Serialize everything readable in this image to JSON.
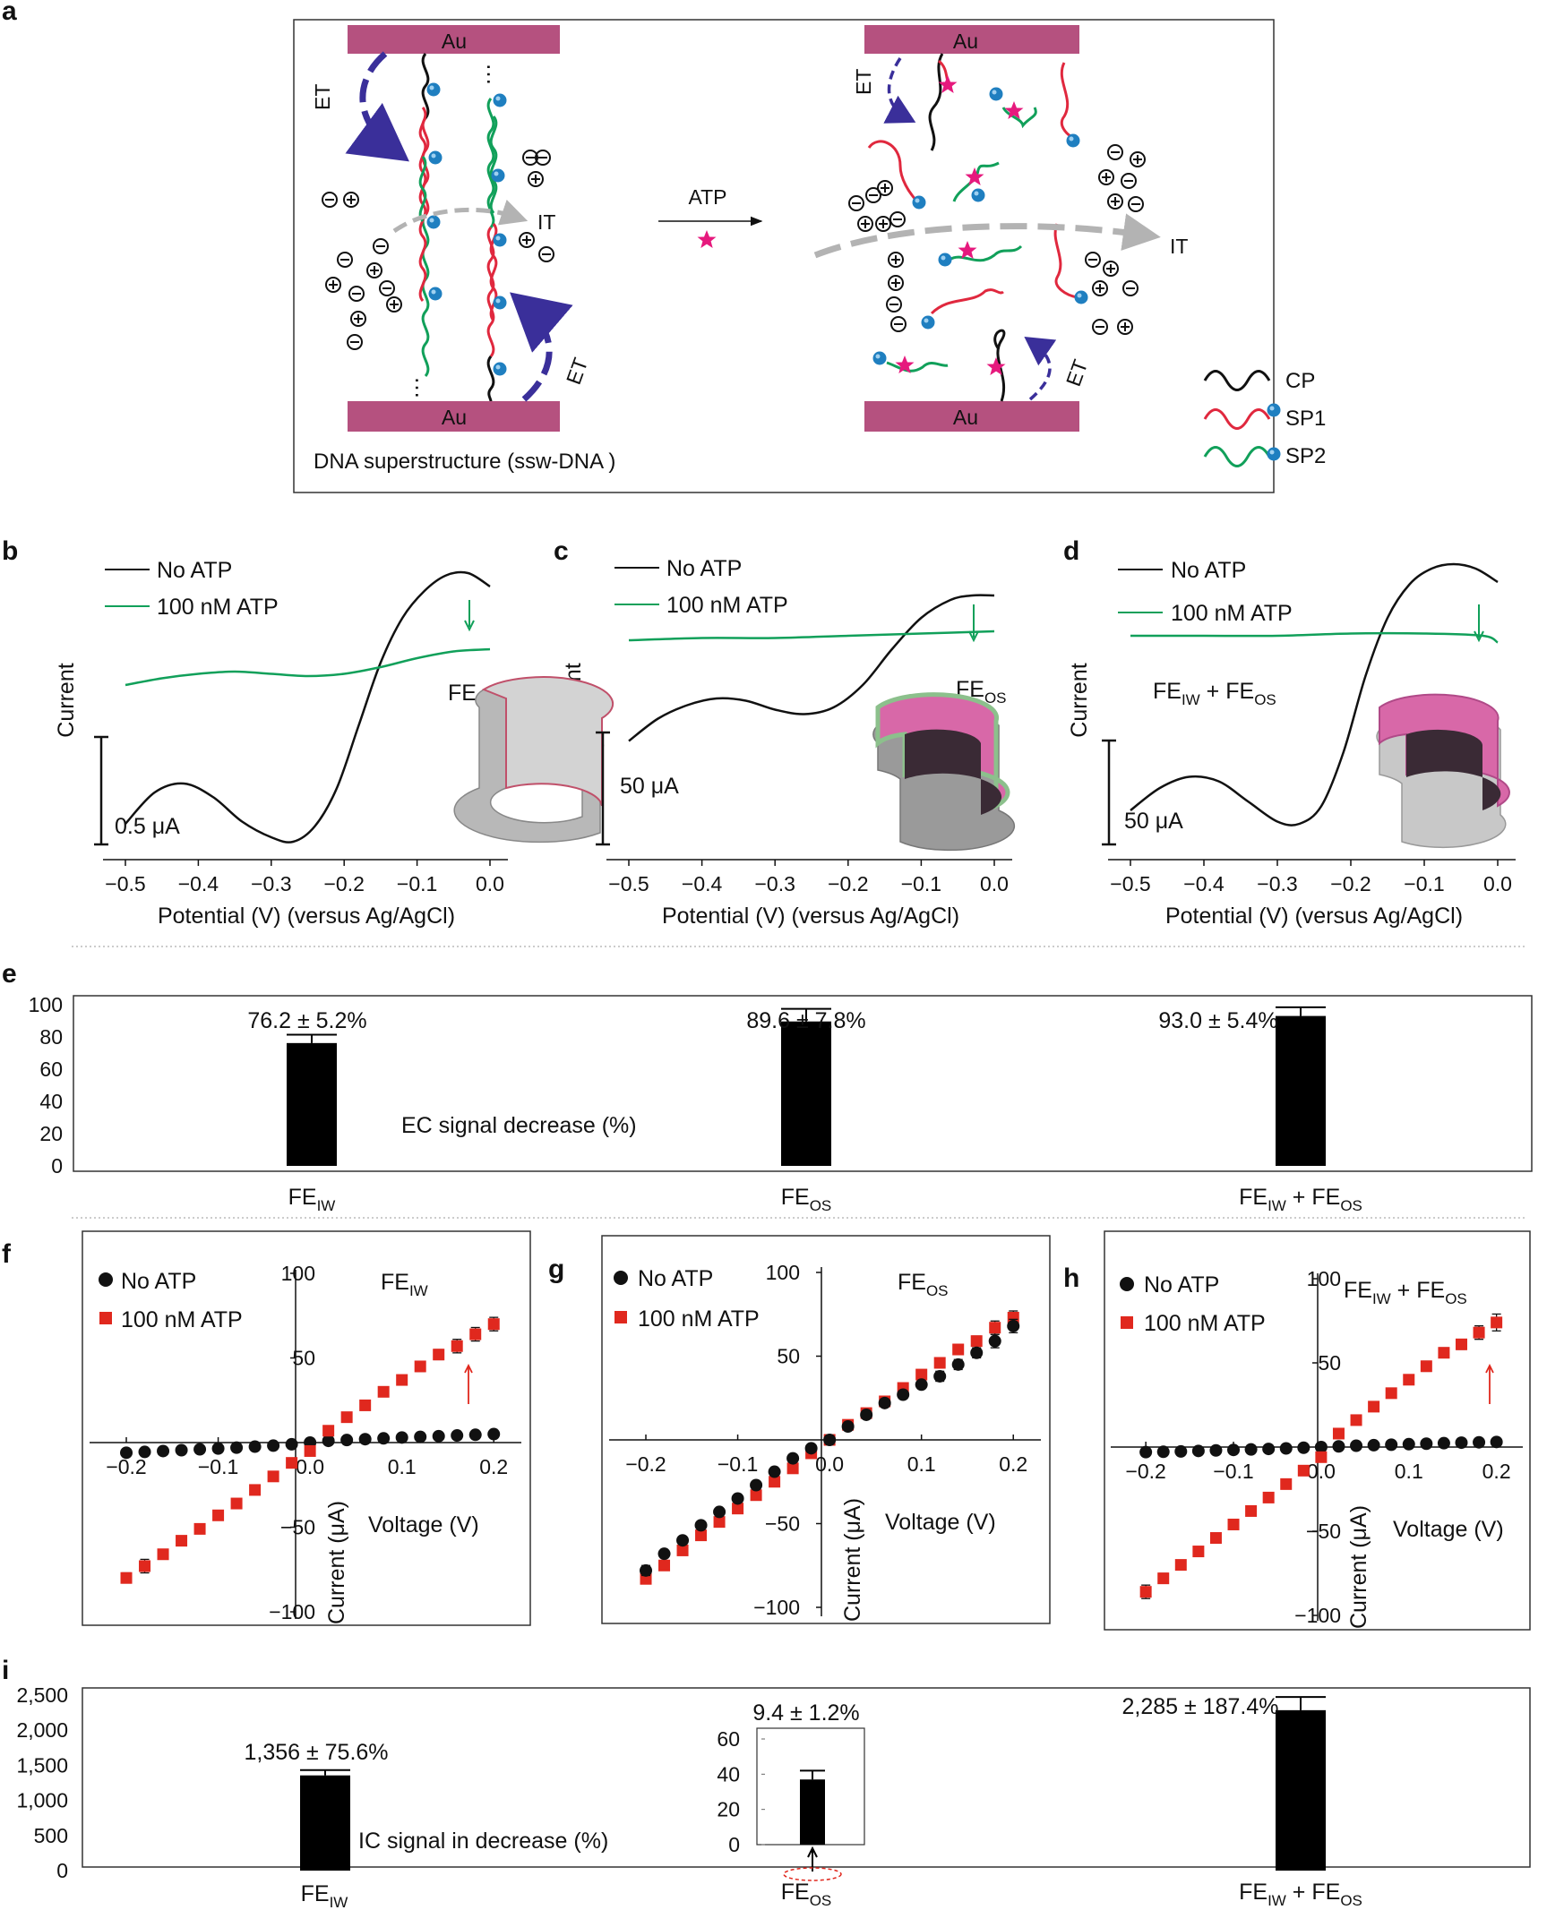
{
  "panels": {
    "a": "a",
    "b": "b",
    "c": "c",
    "d": "d",
    "e": "e",
    "f": "f",
    "g": "g",
    "h": "h",
    "i": "i"
  },
  "schematic": {
    "electrode_label": "Au",
    "et_label": "ET",
    "it_label": "IT",
    "atp_label": "ATP",
    "caption": "DNA  superstructure (ssw-DNA )",
    "legend": [
      "CP",
      "SP1",
      "SP2"
    ],
    "ellipsis": "…",
    "colors": {
      "electrode": "#b5517f",
      "cp": "#111111",
      "sp1": "#e0283e",
      "sp2": "#11a05a",
      "bead": "#1f7fc0",
      "star": "#e6197d",
      "arrow_et": "#3a2f9a",
      "arrow_it": "#b3b3b3"
    }
  },
  "legend": {
    "no_atp": "No ATP",
    "atp": "100 nM ATP"
  },
  "labels": {
    "fe_iw_main": "FE",
    "fe_iw_sub": "IW",
    "fe_os_main": "FE",
    "fe_os_sub": "OS",
    "fe_plus": " + ",
    "current": "Current",
    "current_ua": "Current (μA)",
    "potential": "Potential (V) (versus Ag/AgCl)",
    "voltage": "Voltage (V)"
  },
  "chart_data": [
    {
      "panel": "b",
      "type": "line",
      "xlabel": "Potential (V) (versus Ag/AgCl)",
      "ylabel": "Current",
      "x_ticks": [
        "−0.5",
        "−0.4",
        "−0.3",
        "−0.2",
        "−0.1",
        "0.0"
      ],
      "xlim": [
        -0.5,
        0.0
      ],
      "scale_bar": "0.5 μA",
      "inset": "FEIW",
      "series": [
        {
          "name": "No ATP",
          "color": "#111111",
          "x": [
            -0.5,
            -0.46,
            -0.42,
            -0.38,
            -0.34,
            -0.3,
            -0.27,
            -0.24,
            -0.21,
            -0.18,
            -0.15,
            -0.12,
            -0.09,
            -0.06,
            -0.03,
            0.0
          ],
          "y": [
            0.06,
            0.2,
            0.24,
            0.18,
            0.07,
            0.0,
            -0.02,
            0.05,
            0.22,
            0.5,
            0.78,
            0.98,
            1.1,
            1.17,
            1.18,
            1.12
          ]
        },
        {
          "name": "100 nM ATP",
          "color": "#11a05a",
          "x": [
            -0.5,
            -0.45,
            -0.4,
            -0.35,
            -0.3,
            -0.25,
            -0.2,
            -0.15,
            -0.1,
            -0.05,
            0.0
          ],
          "y": [
            0.68,
            0.71,
            0.73,
            0.74,
            0.73,
            0.72,
            0.73,
            0.76,
            0.8,
            0.83,
            0.84
          ]
        }
      ]
    },
    {
      "panel": "c",
      "type": "line",
      "xlabel": "Potential (V) (versus Ag/AgCl)",
      "ylabel": "Current",
      "x_ticks": [
        "−0.5",
        "−0.4",
        "−0.3",
        "−0.2",
        "−0.1",
        "0.0"
      ],
      "xlim": [
        -0.5,
        0.0
      ],
      "scale_bar": "50 μA",
      "inset": "FEOS",
      "series": [
        {
          "name": "No ATP",
          "color": "#111111",
          "x": [
            -0.5,
            -0.46,
            -0.42,
            -0.38,
            -0.34,
            -0.3,
            -0.26,
            -0.22,
            -0.18,
            -0.14,
            -0.1,
            -0.06,
            -0.03,
            0.0
          ],
          "y": [
            0.43,
            0.53,
            0.59,
            0.62,
            0.61,
            0.57,
            0.55,
            0.58,
            0.68,
            0.84,
            0.98,
            1.06,
            1.08,
            1.08
          ]
        },
        {
          "name": "100 nM ATP",
          "color": "#11a05a",
          "x": [
            -0.5,
            -0.4,
            -0.3,
            -0.2,
            -0.1,
            0.0
          ],
          "y": [
            0.88,
            0.89,
            0.89,
            0.9,
            0.91,
            0.92
          ]
        }
      ]
    },
    {
      "panel": "d",
      "type": "line",
      "xlabel": "Potential (V) (versus Ag/AgCl)",
      "ylabel": "Current",
      "x_ticks": [
        "−0.5",
        "−0.4",
        "−0.3",
        "−0.2",
        "−0.1",
        "0.0"
      ],
      "xlim": [
        -0.5,
        0.0
      ],
      "scale_bar": "50 μA",
      "inset": "FEIW + FEOS",
      "series": [
        {
          "name": "No ATP",
          "color": "#111111",
          "x": [
            -0.5,
            -0.46,
            -0.42,
            -0.38,
            -0.34,
            -0.3,
            -0.27,
            -0.24,
            -0.21,
            -0.18,
            -0.15,
            -0.12,
            -0.09,
            -0.06,
            -0.03,
            0.0
          ],
          "y": [
            0.12,
            0.22,
            0.27,
            0.25,
            0.16,
            0.07,
            0.06,
            0.14,
            0.38,
            0.72,
            0.98,
            1.13,
            1.2,
            1.22,
            1.2,
            1.14
          ]
        },
        {
          "name": "100 nM ATP",
          "color": "#11a05a",
          "x": [
            -0.5,
            -0.4,
            -0.3,
            -0.2,
            -0.1,
            -0.02,
            0.0
          ],
          "y": [
            0.9,
            0.9,
            0.9,
            0.91,
            0.91,
            0.9,
            0.87
          ]
        }
      ]
    },
    {
      "panel": "e",
      "type": "bar",
      "ylabel": "EC signal decrease (%)",
      "categories": [
        "FEIW",
        "FEOS",
        "FEIW + FEOS"
      ],
      "values": [
        76.2,
        89.6,
        93.0
      ],
      "errors": [
        5.2,
        7.8,
        5.4
      ],
      "value_labels": [
        "76.2 ± 5.2%",
        "89.6 ± 7.8%",
        "93.0 ± 5.4%"
      ],
      "ylim": [
        0,
        100
      ],
      "y_ticks": [
        "0",
        "20",
        "40",
        "60",
        "80",
        "100"
      ]
    },
    {
      "panel": "f",
      "type": "scatter",
      "title": "FEIW",
      "xlabel": "Voltage (V)",
      "ylabel": "Current (μA)",
      "xlim": [
        -0.24,
        0.23
      ],
      "ylim": [
        -100,
        100
      ],
      "x_ticks": [
        "−0.2",
        "−0.1",
        "0.0",
        "0.1",
        "0.2"
      ],
      "y_ticks": [
        "100",
        "50",
        "−50",
        "−100"
      ],
      "series": [
        {
          "name": "No ATP",
          "color": "#111111",
          "x": [
            -0.2,
            -0.18,
            -0.16,
            -0.14,
            -0.12,
            -0.1,
            -0.08,
            -0.06,
            -0.04,
            -0.02,
            0.0,
            0.02,
            0.04,
            0.06,
            0.08,
            0.1,
            0.12,
            0.14,
            0.16,
            0.18,
            0.2
          ],
          "y": [
            -6,
            -5.5,
            -5,
            -4.5,
            -4,
            -3.5,
            -3,
            -2.4,
            -1.8,
            -1,
            0,
            1,
            1.5,
            2,
            2.5,
            3,
            3.4,
            3.8,
            4.2,
            4.6,
            5
          ]
        },
        {
          "name": "100 nM ATP",
          "color": "#e0281e",
          "x": [
            -0.2,
            -0.18,
            -0.16,
            -0.14,
            -0.12,
            -0.1,
            -0.08,
            -0.06,
            -0.04,
            -0.02,
            0.0,
            0.02,
            0.04,
            0.06,
            0.08,
            0.1,
            0.12,
            0.14,
            0.16,
            0.18,
            0.2
          ],
          "y": [
            -80,
            -73,
            -66,
            -58,
            -51,
            -43,
            -36,
            -28,
            -20,
            -12,
            -5,
            7,
            15,
            22,
            30,
            37,
            45,
            52,
            57,
            64,
            70
          ],
          "errors": [
            3,
            4,
            2,
            2,
            2,
            2,
            2,
            2,
            2,
            2,
            2,
            2,
            2,
            2,
            2,
            2,
            3,
            3,
            4,
            4,
            4
          ]
        }
      ]
    },
    {
      "panel": "g",
      "type": "scatter",
      "title": "FEOS",
      "xlabel": "Voltage (V)",
      "ylabel": "Current (μA)",
      "xlim": [
        -0.24,
        0.23
      ],
      "ylim": [
        -100,
        100
      ],
      "x_ticks": [
        "−0.2",
        "−0.1",
        "0.0",
        "0.1",
        "0.2"
      ],
      "y_ticks": [
        "100",
        "50",
        "−50",
        "−100"
      ],
      "series": [
        {
          "name": "No ATP",
          "color": "#111111",
          "x": [
            -0.2,
            -0.18,
            -0.16,
            -0.14,
            -0.12,
            -0.1,
            -0.08,
            -0.06,
            -0.04,
            -0.02,
            0.0,
            0.02,
            0.04,
            0.06,
            0.08,
            0.1,
            0.12,
            0.14,
            0.16,
            0.18,
            0.2
          ],
          "y": [
            -78,
            -68,
            -60,
            -51,
            -43,
            -35,
            -27,
            -19,
            -11,
            -5,
            0,
            8,
            15,
            22,
            27,
            33,
            38,
            45,
            52,
            59,
            68
          ],
          "errors": [
            3,
            2,
            2,
            2,
            2,
            2,
            2,
            2,
            2,
            2,
            2,
            2,
            2,
            2,
            2,
            2,
            3,
            3,
            3,
            4,
            4
          ]
        },
        {
          "name": "100 nM ATP",
          "color": "#e0281e",
          "x": [
            -0.2,
            -0.18,
            -0.16,
            -0.14,
            -0.12,
            -0.1,
            -0.08,
            -0.06,
            -0.04,
            -0.02,
            0.0,
            0.02,
            0.04,
            0.06,
            0.08,
            0.1,
            0.12,
            0.14,
            0.16,
            0.18,
            0.2
          ],
          "y": [
            -83,
            -75,
            -66,
            -57,
            -49,
            -41,
            -33,
            -25,
            -17,
            -8,
            0,
            9,
            16,
            23,
            31,
            39,
            46,
            54,
            59,
            67,
            73
          ],
          "errors": [
            3,
            2,
            2,
            2,
            2,
            2,
            2,
            2,
            2,
            2,
            2,
            2,
            2,
            2,
            2,
            2,
            3,
            3,
            3,
            4,
            4
          ]
        }
      ]
    },
    {
      "panel": "h",
      "type": "scatter",
      "title": "FEIW + FEOS",
      "xlabel": "Voltage (V)",
      "ylabel": "Current (μA)",
      "xlim": [
        -0.24,
        0.23
      ],
      "ylim": [
        -100,
        100
      ],
      "x_ticks": [
        "−0.2",
        "−0.1",
        "0.0",
        "0.1",
        "0.2"
      ],
      "y_ticks": [
        "100",
        "50",
        "−50",
        "−100"
      ],
      "series": [
        {
          "name": "No ATP",
          "color": "#111111",
          "x": [
            -0.2,
            -0.18,
            -0.16,
            -0.14,
            -0.12,
            -0.1,
            -0.08,
            -0.06,
            -0.04,
            -0.02,
            0.0,
            0.02,
            0.04,
            0.06,
            0.08,
            0.1,
            0.12,
            0.14,
            0.16,
            0.18,
            0.2
          ],
          "y": [
            -3,
            -2.8,
            -2.6,
            -2.3,
            -2,
            -1.7,
            -1.4,
            -1.1,
            -0.8,
            -0.4,
            0,
            0.4,
            0.8,
            1.1,
            1.4,
            1.7,
            2,
            2.3,
            2.6,
            2.8,
            3
          ]
        },
        {
          "name": "100 nM ATP",
          "color": "#e0281e",
          "x": [
            -0.2,
            -0.18,
            -0.16,
            -0.14,
            -0.12,
            -0.1,
            -0.08,
            -0.06,
            -0.04,
            -0.02,
            0.0,
            0.02,
            0.04,
            0.06,
            0.08,
            0.1,
            0.12,
            0.14,
            0.16,
            0.18,
            0.2
          ],
          "y": [
            -86,
            -78,
            -70,
            -62,
            -54,
            -46,
            -38,
            -30,
            -22,
            -14,
            -6,
            8,
            16,
            24,
            32,
            40,
            48,
            56,
            61,
            68,
            74
          ],
          "errors": [
            4,
            3,
            2,
            2,
            2,
            2,
            2,
            2,
            2,
            2,
            2,
            2,
            2,
            2,
            2,
            2,
            3,
            3,
            3,
            4,
            5
          ]
        }
      ]
    },
    {
      "panel": "i",
      "type": "bar",
      "ylabel": "IC signal in decrease (%)",
      "categories": [
        "FEIW",
        "FEOS",
        "FEIW + FEOS"
      ],
      "values": [
        1356,
        9.4,
        2285
      ],
      "errors": [
        75.6,
        1.2,
        187.4
      ],
      "value_labels": [
        "1,356 ± 75.6%",
        "9.4 ± 1.2%",
        "2,285 ± 187.4%"
      ],
      "ylim": [
        0,
        2500
      ],
      "y_ticks": [
        "0",
        "500",
        "1,000",
        "1,500",
        "2,000",
        "2,500"
      ],
      "inset": {
        "value": 37,
        "error": 5,
        "ylim": [
          0,
          60
        ],
        "y_ticks": [
          "0",
          "20",
          "40",
          "60"
        ]
      }
    }
  ]
}
